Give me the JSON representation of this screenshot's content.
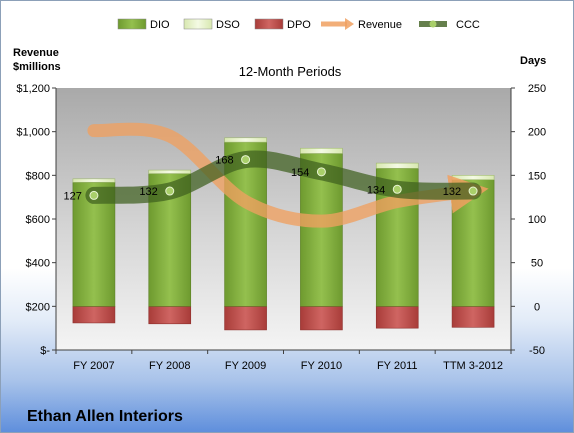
{
  "chart_data": {
    "type": "bar",
    "title": "12-Month Periods",
    "company": "Ethan Allen Interiors",
    "ylabel_left": "Revenue\n$millions",
    "ylabel_right": "Days",
    "categories": [
      "FY 2007",
      "FY 2008",
      "FY 2009",
      "FY 2010",
      "FY 2011",
      "TTM 3-2012"
    ],
    "y_left": {
      "min": 0,
      "max": 1200,
      "step": 200,
      "tick_labels": [
        "$-",
        "$200",
        "$400",
        "$600",
        "$800",
        "$1,000",
        "$1,200"
      ]
    },
    "y_right": {
      "min": -50,
      "max": 250,
      "step": 50,
      "tick_labels": [
        "-50",
        "0",
        "50",
        "100",
        "150",
        "200",
        "250"
      ]
    },
    "series": [
      {
        "name": "DIO",
        "kind": "stacked-bar",
        "axis": "right",
        "color": "#7aa63a",
        "values": [
          142,
          152,
          188,
          175,
          158,
          145
        ]
      },
      {
        "name": "DSO",
        "kind": "stacked-bar",
        "axis": "right",
        "color": "#e4f0c4",
        "values": [
          4,
          4,
          5,
          6,
          6,
          5
        ]
      },
      {
        "name": "DPO",
        "kind": "negative-bar",
        "axis": "right",
        "color": "#c0504d",
        "values": [
          -19,
          -20,
          -27,
          -27,
          -25,
          -24
        ]
      },
      {
        "name": "Revenue",
        "kind": "line",
        "axis": "left",
        "color": "#f0a060",
        "values": [
          1005,
          980,
          680,
          590,
          680,
          729
        ]
      },
      {
        "name": "CCC",
        "kind": "line",
        "axis": "right",
        "color": "#3f5f1f",
        "values": [
          127,
          132,
          168,
          154,
          134,
          132
        ],
        "labels": [
          "127",
          "132",
          "168",
          "154",
          "134",
          "132"
        ]
      }
    ],
    "legend_position": "top",
    "grid": false
  }
}
